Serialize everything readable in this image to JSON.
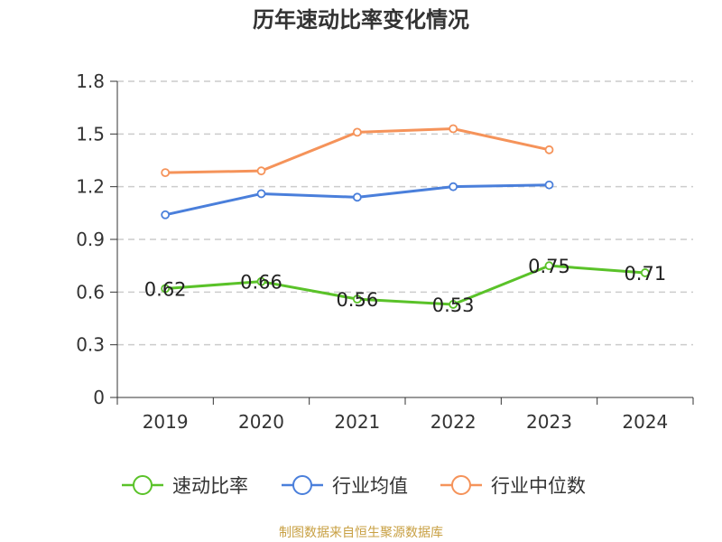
{
  "chart_data": {
    "type": "line",
    "title": "历年速动比率变化情况",
    "categories": [
      "2019",
      "2020",
      "2021",
      "2022",
      "2023",
      "2024"
    ],
    "ylim": [
      0,
      1.8
    ],
    "y_ticks": [
      "0",
      "0.3",
      "0.6",
      "0.9",
      "1.2",
      "1.5",
      "1.8"
    ],
    "grid": true,
    "legend_position": "bottom",
    "series": [
      {
        "name": "速动比率",
        "color": "#5ac229",
        "values": [
          0.62,
          0.66,
          0.56,
          0.53,
          0.75,
          0.71
        ],
        "show_labels": true
      },
      {
        "name": "行业均值",
        "color": "#4a7fdb",
        "values": [
          1.04,
          1.16,
          1.14,
          1.2,
          1.21,
          null
        ],
        "show_labels": false
      },
      {
        "name": "行业中位数",
        "color": "#f5935a",
        "values": [
          1.28,
          1.29,
          1.51,
          1.53,
          1.41,
          null
        ],
        "show_labels": false
      }
    ]
  },
  "footer": {
    "source_text": "制图数据来自恒生聚源数据库"
  }
}
